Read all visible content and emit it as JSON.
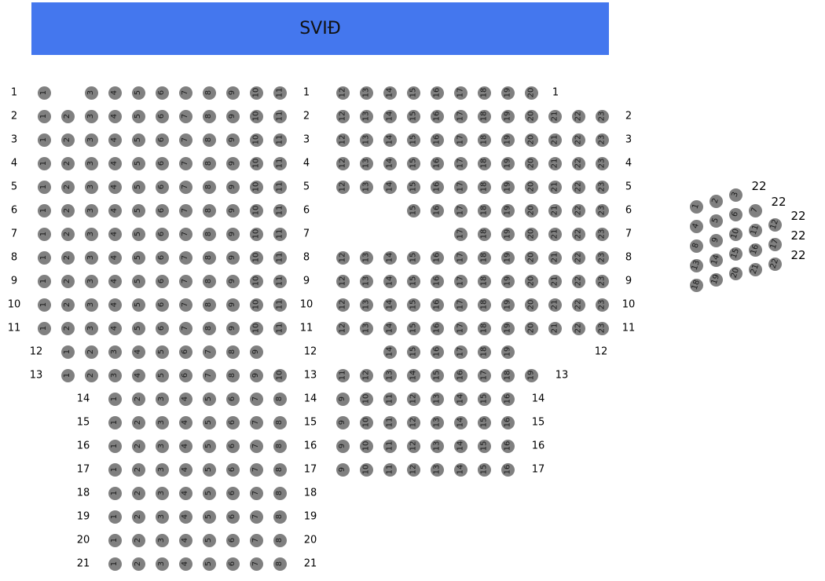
{
  "stage": {
    "label": "SVIÐ",
    "color": "#4477ee"
  },
  "seat_color": "#808080",
  "rows": [
    {
      "label": "1",
      "left": [
        1,
        3,
        4,
        5,
        6,
        7,
        8,
        9,
        10,
        11
      ],
      "middle": [
        12,
        13,
        14,
        15,
        16,
        17,
        18,
        19,
        20
      ]
    },
    {
      "label": "2",
      "left": [
        1,
        2,
        3,
        4,
        5,
        6,
        7,
        8,
        9,
        10,
        11
      ],
      "middle": [
        12,
        13,
        14,
        15,
        16,
        17,
        18,
        19,
        20,
        21,
        22,
        23
      ]
    },
    {
      "label": "3",
      "left": [
        1,
        2,
        3,
        4,
        5,
        6,
        7,
        8,
        9,
        10,
        11
      ],
      "middle": [
        12,
        13,
        14,
        15,
        16,
        17,
        18,
        19,
        20,
        21,
        22,
        23
      ]
    },
    {
      "label": "4",
      "left": [
        1,
        2,
        3,
        4,
        5,
        6,
        7,
        8,
        9,
        10,
        11
      ],
      "middle": [
        12,
        13,
        14,
        15,
        16,
        17,
        18,
        19,
        20,
        21,
        22,
        23
      ]
    },
    {
      "label": "5",
      "left": [
        1,
        2,
        3,
        4,
        5,
        6,
        7,
        8,
        9,
        10,
        11
      ],
      "middle": [
        12,
        13,
        14,
        15,
        16,
        17,
        18,
        19,
        20,
        21,
        22,
        23
      ]
    },
    {
      "label": "6",
      "left": [
        1,
        2,
        3,
        4,
        5,
        6,
        7,
        8,
        9,
        10,
        11
      ],
      "middle": [
        15,
        16,
        17,
        18,
        19,
        20,
        21,
        22,
        23
      ]
    },
    {
      "label": "7",
      "left": [
        1,
        2,
        3,
        4,
        5,
        6,
        7,
        8,
        9,
        10,
        11
      ],
      "middle": [
        17,
        18,
        19,
        20,
        21,
        22,
        23
      ]
    },
    {
      "label": "8",
      "left": [
        1,
        2,
        3,
        4,
        5,
        6,
        7,
        8,
        9,
        10,
        11
      ],
      "middle": [
        12,
        13,
        14,
        15,
        16,
        17,
        18,
        19,
        20,
        21,
        22,
        23
      ]
    },
    {
      "label": "9",
      "left": [
        1,
        2,
        3,
        4,
        5,
        6,
        7,
        8,
        9,
        10,
        11
      ],
      "middle": [
        12,
        13,
        14,
        15,
        16,
        17,
        18,
        19,
        20,
        21,
        22,
        23
      ]
    },
    {
      "label": "10",
      "left": [
        1,
        2,
        3,
        4,
        5,
        6,
        7,
        8,
        9,
        10,
        11
      ],
      "middle": [
        12,
        13,
        14,
        15,
        16,
        17,
        18,
        19,
        20,
        21,
        22,
        23
      ]
    },
    {
      "label": "11",
      "left": [
        1,
        2,
        3,
        4,
        5,
        6,
        7,
        8,
        9,
        10,
        11
      ],
      "middle": [
        12,
        13,
        14,
        15,
        16,
        17,
        18,
        19,
        20,
        21,
        22,
        23
      ]
    },
    {
      "label": "12",
      "left": [
        1,
        2,
        3,
        4,
        5,
        6,
        7,
        8,
        9
      ],
      "middle": [
        14,
        15,
        16,
        17,
        18,
        19
      ]
    },
    {
      "label": "13",
      "left": [
        1,
        2,
        3,
        4,
        5,
        6,
        7,
        8,
        9,
        10
      ],
      "middle": [
        11,
        12,
        13,
        14,
        15,
        16,
        17,
        18,
        19
      ]
    },
    {
      "label": "14",
      "left": [
        1,
        2,
        3,
        4,
        5,
        6,
        7,
        8
      ],
      "middle": [
        9,
        10,
        11,
        12,
        13,
        14,
        15,
        16
      ]
    },
    {
      "label": "15",
      "left": [
        1,
        2,
        3,
        4,
        5,
        6,
        7,
        8
      ],
      "middle": [
        9,
        10,
        11,
        12,
        13,
        14,
        15,
        16
      ]
    },
    {
      "label": "16",
      "left": [
        1,
        2,
        3,
        4,
        5,
        6,
        7,
        8
      ],
      "middle": [
        9,
        10,
        11,
        12,
        13,
        14,
        15,
        16
      ]
    },
    {
      "label": "17",
      "left": [
        1,
        2,
        3,
        4,
        5,
        6,
        7,
        8
      ],
      "middle": [
        9,
        10,
        11,
        12,
        13,
        14,
        15,
        16
      ]
    },
    {
      "label": "18",
      "left": [
        1,
        2,
        3,
        4,
        5,
        6,
        7,
        8
      ],
      "middle": []
    },
    {
      "label": "19",
      "left": [
        1,
        2,
        3,
        4,
        5,
        6,
        7,
        8
      ],
      "middle": []
    },
    {
      "label": "20",
      "left": [
        1,
        2,
        3,
        4,
        5,
        6,
        7,
        8
      ],
      "middle": []
    },
    {
      "label": "21",
      "left": [
        1,
        2,
        3,
        4,
        5,
        6,
        7,
        8
      ],
      "middle": []
    }
  ],
  "box": {
    "row_labels": [
      "22",
      "22",
      "22",
      "22",
      "22"
    ],
    "seats": [
      1,
      2,
      3,
      4,
      5,
      6,
      7,
      8,
      9,
      10,
      11,
      12,
      13,
      14,
      15,
      16,
      17,
      18,
      19,
      20,
      21,
      22
    ]
  }
}
